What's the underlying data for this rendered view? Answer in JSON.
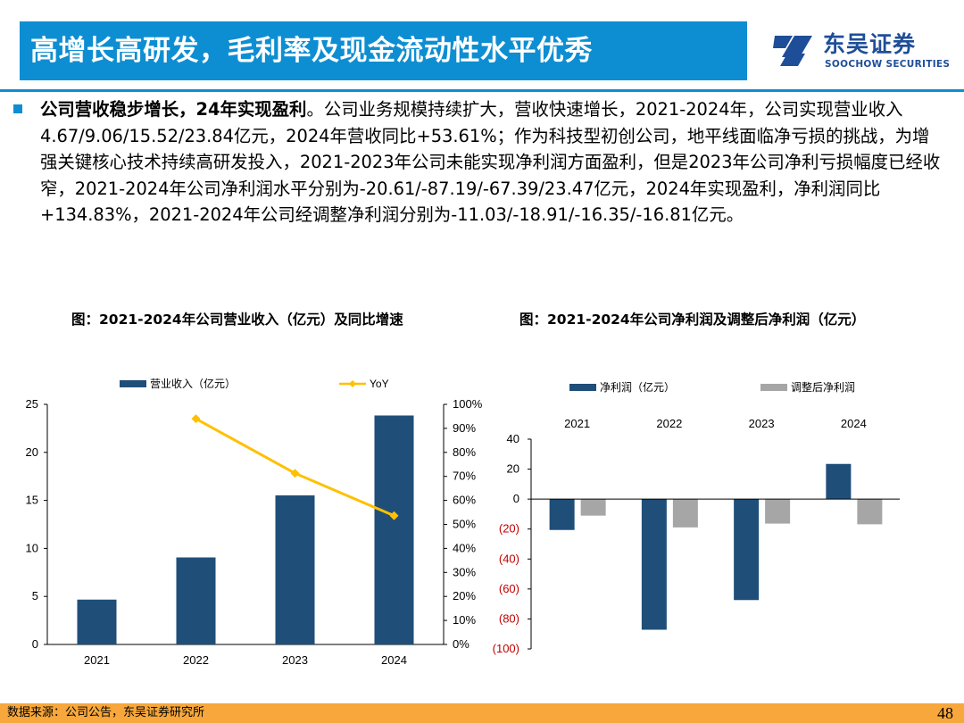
{
  "header": {
    "title": "高增长高研发，毛利率及现金流动性水平优秀",
    "brand_cn": "东吴证券",
    "brand_en": "SOOCHOW SECURITIES"
  },
  "body": {
    "lead": "公司营收稳步增长，24年实现盈利",
    "text": "。公司业务规模持续扩大，营收快速增长，2021-2024年，公司实现营业收入4.67/9.06/15.52/23.84亿元，2024年营收同比+53.61%；作为科技型初创公司，地平线面临净亏损的挑战，为增强关键核心技术持续高研发投入，2021-2023年公司未能实现净利润方面盈利，但是2023年公司净利亏损幅度已经收窄，2021-2024年公司净利润水平分别为-20.61/-87.19/-67.39/23.47亿元，2024年实现盈利，净利润同比+134.83%，2021-2024年公司经调整净利润分别为-11.03/-18.91/-16.35/-16.81亿元。"
  },
  "captions": {
    "left": "图：2021-2024年公司营业收入（亿元）及同比增速",
    "right": "图：2021-2024年公司净利润及调整后净利润（亿元）"
  },
  "chart_data": [
    {
      "type": "bar",
      "title": "图：2021-2024年公司营业收入（亿元）及同比增速",
      "categories": [
        "2021",
        "2022",
        "2023",
        "2024"
      ],
      "series": [
        {
          "name": "营业收入（亿元）",
          "type": "bar",
          "axis": "left",
          "color": "#1f4e79",
          "values": [
            4.67,
            9.06,
            15.52,
            23.84
          ]
        },
        {
          "name": "YoY",
          "type": "line",
          "axis": "right",
          "color": "#ffc000",
          "values": [
            null,
            94.0,
            71.3,
            53.61
          ]
        }
      ],
      "ylim": [
        0,
        25
      ],
      "y_ticks": [
        "0",
        "5",
        "10",
        "15",
        "20",
        "25"
      ],
      "y2lim": [
        0,
        100
      ],
      "y2_ticks": [
        "0%",
        "10%",
        "20%",
        "30%",
        "40%",
        "50%",
        "60%",
        "70%",
        "80%",
        "90%",
        "100%"
      ],
      "legend": "top",
      "grid": false
    },
    {
      "type": "bar",
      "title": "图：2021-2024年公司净利润及调整后净利润（亿元）",
      "categories": [
        "2021",
        "2022",
        "2023",
        "2024"
      ],
      "series": [
        {
          "name": "净利润（亿元）",
          "color": "#1f4e79",
          "values": [
            -20.61,
            -87.19,
            -67.39,
            23.47
          ]
        },
        {
          "name": "调整后净利润",
          "color": "#a6a6a6",
          "values": [
            -11.03,
            -18.91,
            -16.35,
            -16.81
          ]
        }
      ],
      "ylim": [
        -100,
        40
      ],
      "y_ticks": [
        "(100)",
        "(80)",
        "(60)",
        "(40)",
        "(20)",
        "0",
        "20",
        "40"
      ],
      "negative_label_color": "#c00000",
      "category_labels_position": "top",
      "legend": "top",
      "grid": false
    }
  ],
  "footer": {
    "source": "数据来源：公司公告，东吴证券研究所",
    "page": "48"
  }
}
